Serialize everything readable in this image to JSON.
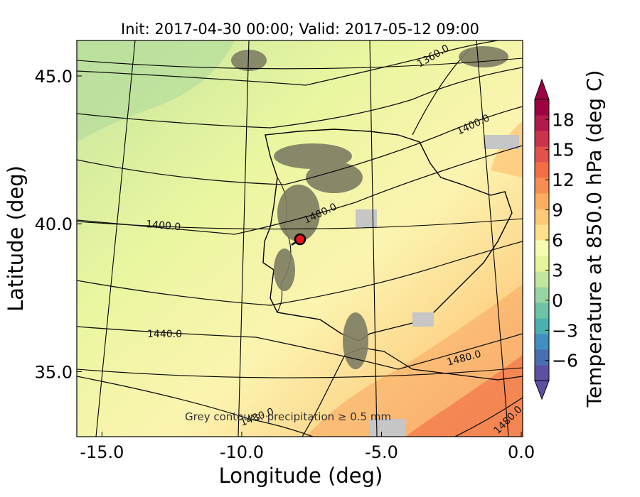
{
  "title": "Init: 2017-04-30 00:00; Valid: 2017-05-12 09:00",
  "x_axis": {
    "label": "Longitude (deg)",
    "ticks": [
      {
        "value": -15,
        "label": "-15.0"
      },
      {
        "value": -10,
        "label": "-10.0"
      },
      {
        "value": -5,
        "label": "-5.0"
      },
      {
        "value": 0,
        "label": "0.0"
      }
    ],
    "range": [
      -15.9,
      0.05
    ]
  },
  "y_axis": {
    "label": "Latitude (deg)",
    "ticks": [
      {
        "value": 45,
        "label": "45.0"
      },
      {
        "value": 40,
        "label": "40.0"
      },
      {
        "value": 35,
        "label": "35.0"
      }
    ],
    "range": [
      32.8,
      46.2
    ]
  },
  "colorbar": {
    "label": "Temperature at 850.0 hPa (deg C)",
    "range": [
      -8,
      20
    ],
    "extend": "both",
    "ticks": [
      {
        "value": -6,
        "label": "−6"
      },
      {
        "value": -3,
        "label": "−3"
      },
      {
        "value": 0,
        "label": "0"
      },
      {
        "value": 3,
        "label": "3"
      },
      {
        "value": 6,
        "label": "6"
      },
      {
        "value": 9,
        "label": "9"
      },
      {
        "value": 12,
        "label": "12"
      },
      {
        "value": 15,
        "label": "15"
      },
      {
        "value": 18,
        "label": "18"
      }
    ],
    "colors": [
      "#5e4fa2",
      "#4a6fb0",
      "#3f8fbf",
      "#4bb0b0",
      "#6cc3a5",
      "#99d5a4",
      "#c2e69e",
      "#e6f598",
      "#f6fbb0",
      "#fee08b",
      "#fdc877",
      "#fdae61",
      "#f88d52",
      "#f46d43",
      "#e2524a",
      "#cb334c",
      "#b31a4c",
      "#9e0142"
    ]
  },
  "geopotential_contours": [
    {
      "label": "1360.0",
      "value": 1360
    },
    {
      "label": "1400.0",
      "value": 1400
    },
    {
      "label": "1400.0",
      "value": 1400
    },
    {
      "label": "1400.0",
      "value": 1400
    },
    {
      "label": "1440.0",
      "value": 1440
    },
    {
      "label": "1480.0",
      "value": 1480
    },
    {
      "label": "1480.0",
      "value": 1480
    },
    {
      "label": "1480.0",
      "value": 1480
    }
  ],
  "annotation": "Grey contours: precipitation ≥ 0.5 mm",
  "marker": {
    "lon": -7.6,
    "lat": 39.3,
    "color": "#e8141e"
  }
}
